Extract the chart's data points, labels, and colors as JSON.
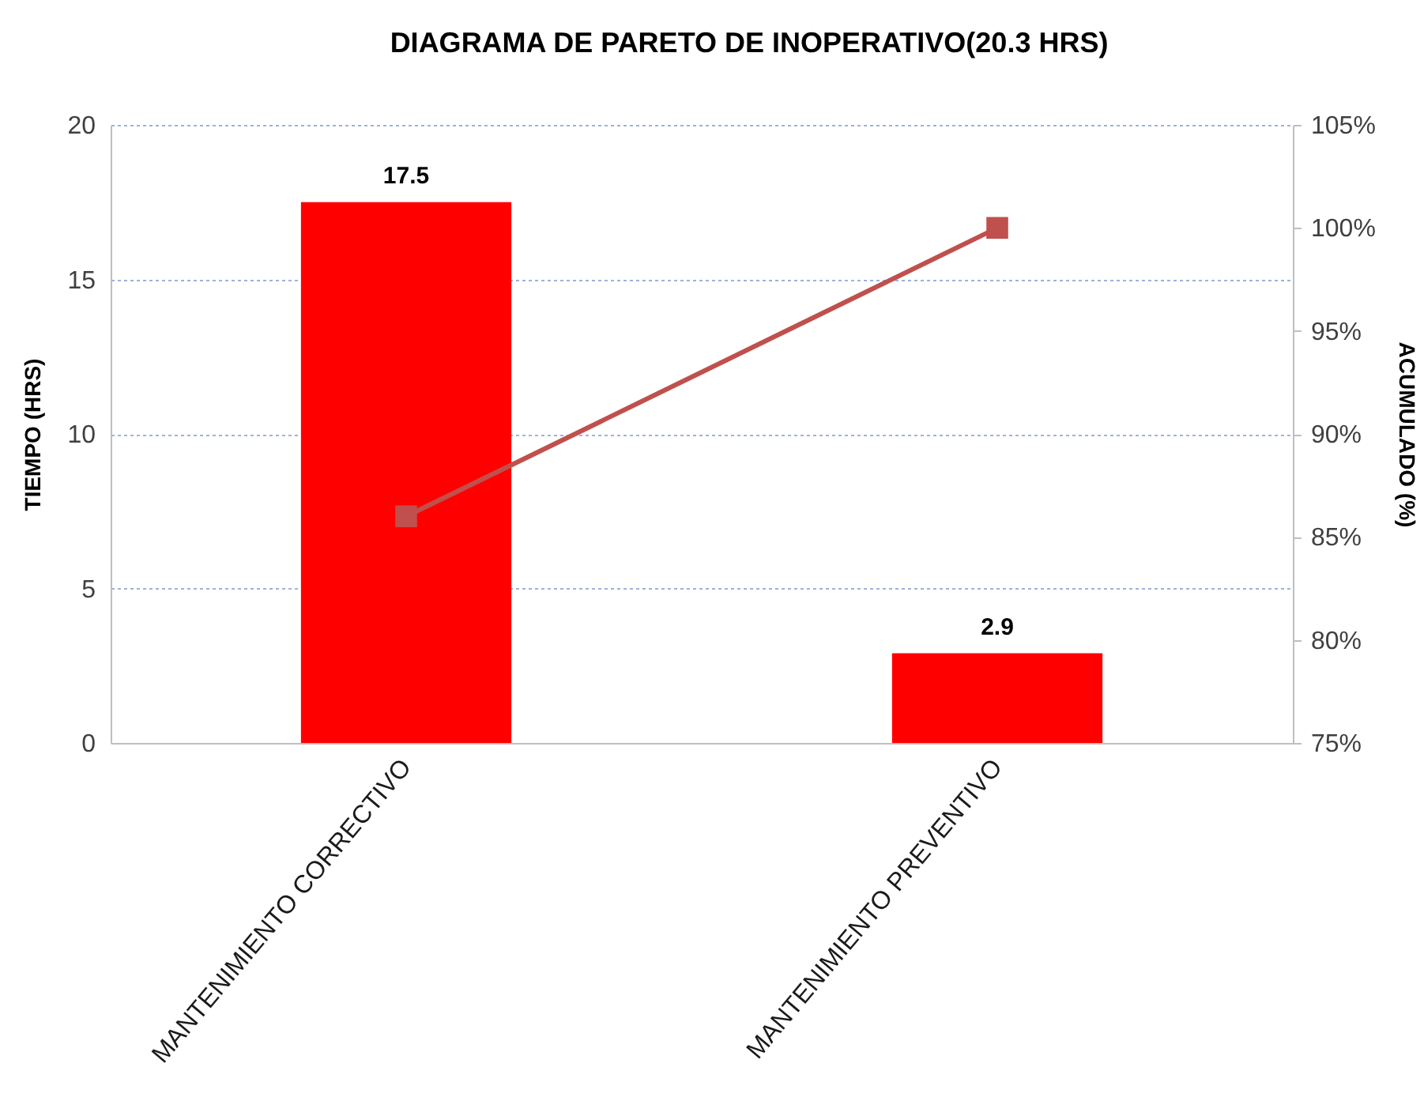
{
  "chart_data": {
    "type": "bar",
    "title": "DIAGRAMA DE PARETO DE INOPERATIVO(20.3 HRS)",
    "ylabel": "TIEMPO (HRS)",
    "y2label": "ACUMULADO (%)",
    "categories": [
      "MANTENIMIENTO CORRECTIVO",
      "MANTENIMIENTO PREVENTIVO"
    ],
    "series": [
      {
        "color": "#ff0000",
        "values": [
          17.5,
          2.9
        ],
        "value_labels": [
          "17.5",
          "2.9"
        ]
      },
      {
        "type": "line",
        "axis": "y2",
        "color": "#c0504d",
        "values": [
          86,
          100
        ]
      }
    ],
    "ylim": [
      0,
      20
    ],
    "yticks": [
      0,
      5,
      10,
      15,
      20
    ],
    "y2lim": [
      75,
      105
    ],
    "y2ticks": [
      {
        "value": 75,
        "label": "75%"
      },
      {
        "value": 80,
        "label": "80%"
      },
      {
        "value": 85,
        "label": "85%"
      },
      {
        "value": 90,
        "label": "90%"
      },
      {
        "value": 95,
        "label": "95%"
      },
      {
        "value": 100,
        "label": "100%"
      },
      {
        "value": 105,
        "label": "105%"
      }
    ],
    "grid": "y",
    "marker": "square"
  }
}
